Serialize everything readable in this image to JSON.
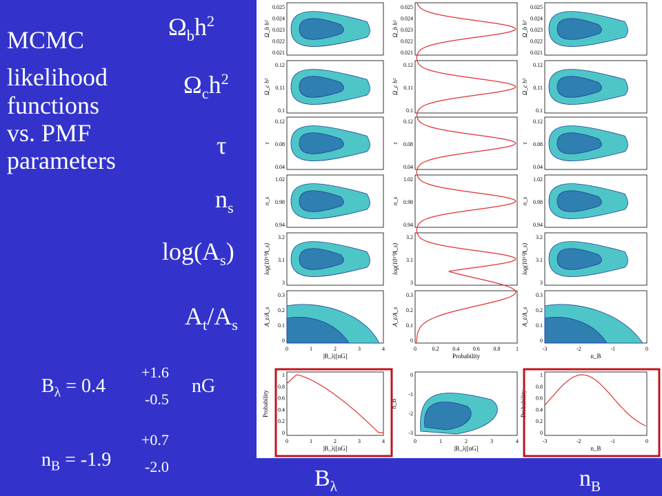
{
  "slide": {
    "title_lines": [
      "MCMC",
      "likelihood",
      "functions",
      "vs. PMF",
      "parameters"
    ],
    "param_labels": [
      {
        "main": "Ω",
        "sub": "b",
        "tail": "h",
        "sup": "2"
      },
      {
        "main": "Ω",
        "sub": "c",
        "tail": "h",
        "sup": "2"
      },
      {
        "main": "τ",
        "sub": "",
        "tail": "",
        "sup": ""
      },
      {
        "main": "n",
        "sub": "s",
        "tail": "",
        "sup": ""
      },
      {
        "main": "log(A",
        "sub": "s",
        "tail": ")",
        "sup": ""
      },
      {
        "main": "A",
        "sub": "t",
        "tail": "/A",
        "sup": "",
        "sub2": "s"
      }
    ],
    "results": {
      "blambda": {
        "name": "B",
        "sym": "λ",
        "eq": " = 0.4",
        "plus": "+1.6",
        "minus": "-0.5",
        "unit": "nG"
      },
      "nb": {
        "name": "n",
        "sub": "B",
        "eq": " = -1.9",
        "plus": "+0.7",
        "minus": "-2.0"
      }
    },
    "bottom_labels": {
      "left": {
        "main": "B",
        "sym": "λ"
      },
      "right": {
        "main": "n",
        "sub": "B"
      }
    }
  },
  "colors": {
    "background": "#3333cc",
    "plot_bg": "#ffffff",
    "contour_outer": "#4ec6c8",
    "contour_inner": "#2f7fb0",
    "contour_edge": "#1f3f9a",
    "curve": "#e03030",
    "highlight_box": "#c0141e"
  },
  "plots": {
    "rows": [
      {
        "ylabel": "Ω_b h²",
        "ticks": [
          "0.025",
          "0.024",
          "0.023",
          "0.022",
          "0.021"
        ]
      },
      {
        "ylabel": "Ω_c h²",
        "ticks": [
          "0.12",
          "0.11",
          "0.1"
        ]
      },
      {
        "ylabel": "τ",
        "ticks": [
          "0.12",
          "0.08",
          "0.04"
        ]
      },
      {
        "ylabel": "n_s",
        "ticks": [
          "1.02",
          "0.98",
          "0.94"
        ]
      },
      {
        "ylabel": "log(10¹⁰A_s)",
        "ticks": [
          "3.2",
          "3.1",
          "3"
        ]
      },
      {
        "ylabel": "A_t/A_s",
        "ticks": [
          "0.3",
          "0.2",
          "0.1",
          "0"
        ]
      }
    ],
    "col1_xticks": [
      "0",
      "1",
      "2",
      "3",
      "4"
    ],
    "col1_xlabel": "|B_λ|[nG]",
    "col2_xticks": [
      "0",
      "0.2",
      "0.4",
      "0.6",
      "0.8",
      "1"
    ],
    "col2_xlabel": "Probability",
    "col3_xticks": [
      "-3",
      "-2",
      "-1",
      "0"
    ],
    "col3_xlabel": "n_B",
    "bottom": {
      "left": {
        "ylabel": "Probability",
        "yticks": [
          "1",
          "0.8",
          "0.6",
          "0.4",
          "0.2",
          "0"
        ],
        "xticks": [
          "0",
          "1",
          "2",
          "3",
          "4"
        ],
        "xlabel": "|B_λ|[nG]"
      },
      "mid": {
        "ylabel": "n_B",
        "yticks": [
          "0",
          "-1",
          "-2",
          "-3"
        ],
        "xticks": [
          "0",
          "1",
          "2",
          "3",
          "4"
        ],
        "xlabel": "|B_λ|[nG]"
      },
      "right": {
        "ylabel": "Probability",
        "yticks": [
          "1",
          "0.8",
          "0.6",
          "0.4",
          "0.2",
          "0"
        ],
        "xticks": [
          "-3",
          "-2",
          "-1",
          "0"
        ],
        "xlabel": "n_B"
      }
    }
  }
}
